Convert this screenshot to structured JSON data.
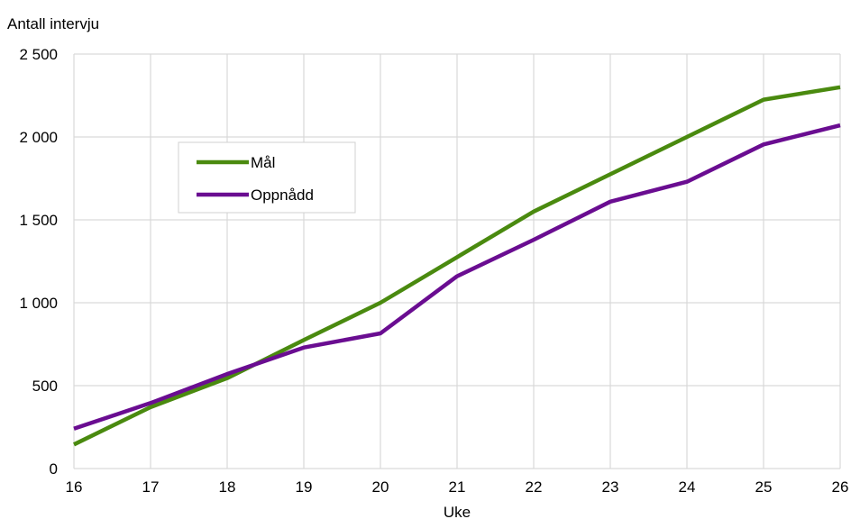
{
  "chart_data": {
    "type": "line",
    "title": "",
    "xlabel": "Uke",
    "ylabel": "Antall intervju",
    "x": [
      16,
      17,
      18,
      19,
      20,
      21,
      22,
      23,
      24,
      25,
      26
    ],
    "x_tick_labels": [
      "16",
      "17",
      "18",
      "19",
      "20",
      "21",
      "22",
      "23",
      "24",
      "25",
      "26"
    ],
    "xlim": [
      16,
      26
    ],
    "ylim": [
      0,
      2500
    ],
    "y_ticks": [
      0,
      500,
      1000,
      1500,
      2000,
      2500
    ],
    "y_tick_labels": [
      "0",
      "500",
      "1 000",
      "1 500",
      "2 000",
      "2 500"
    ],
    "grid": true,
    "legend_position": "upper-left",
    "series": [
      {
        "name": "Mål",
        "color": "#4a8a0f",
        "values": [
          145,
          370,
          545,
          775,
          1000,
          1275,
          1550,
          1775,
          2000,
          2225,
          2300
        ]
      },
      {
        "name": "Oppnådd",
        "color": "#6a0d91",
        "values": [
          240,
          395,
          570,
          730,
          815,
          1160,
          1380,
          1610,
          1730,
          1955,
          2070
        ]
      }
    ]
  }
}
